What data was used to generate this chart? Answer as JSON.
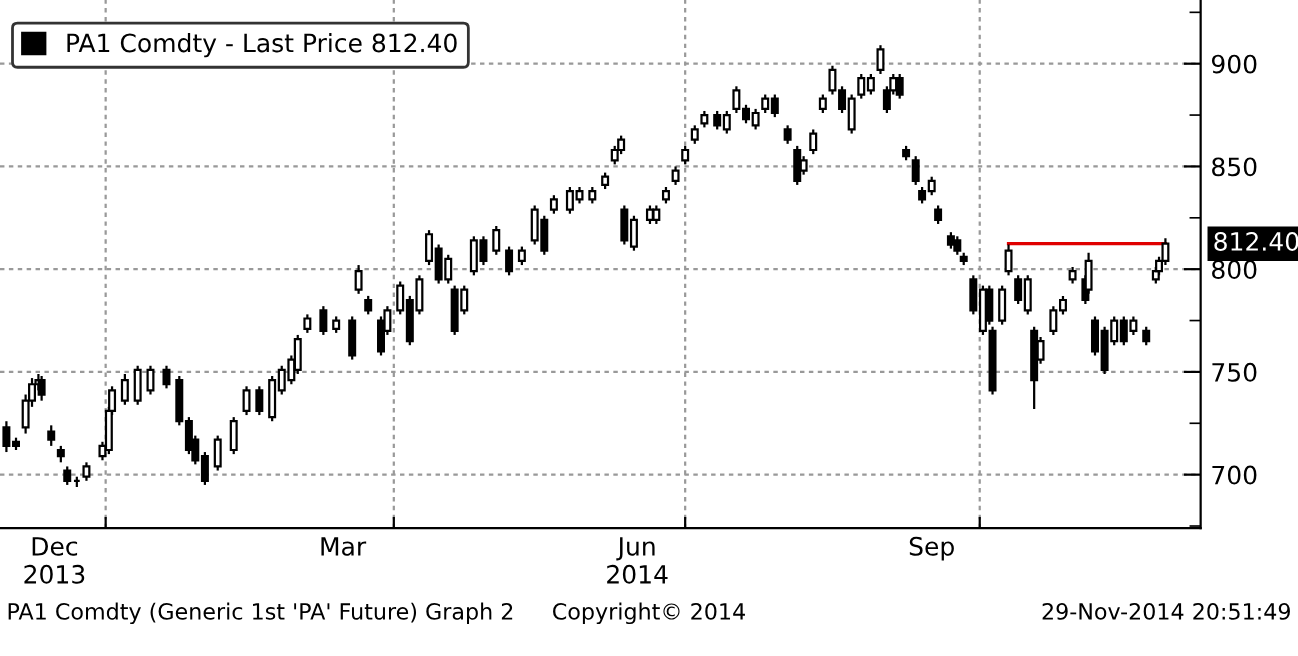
{
  "chart_data": {
    "type": "candlestick",
    "series": [
      {
        "name": "PA1 Comdty - Last Price 812.40",
        "color": "#000000",
        "x": [
          "2013-12-01",
          "2013-12-04",
          "2013-12-07",
          "2013-12-09",
          "2013-12-11",
          "2013-12-12",
          "2013-12-15",
          "2013-12-18",
          "2013-12-20",
          "2013-12-23",
          "2013-12-26",
          "2013-12-31",
          "2014-01-02",
          "2014-01-03",
          "2014-01-07",
          "2014-01-11",
          "2014-01-15",
          "2014-01-20",
          "2014-01-24",
          "2014-01-27",
          "2014-01-29",
          "2014-02-01",
          "2014-02-05",
          "2014-02-10",
          "2014-02-14",
          "2014-02-18",
          "2014-02-22",
          "2014-02-25",
          "2014-02-28",
          "2014-03-02",
          "2014-03-05",
          "2014-03-10",
          "2014-03-14",
          "2014-03-19",
          "2014-03-21",
          "2014-03-24",
          "2014-03-28",
          "2014-03-30",
          "2014-04-03",
          "2014-04-06",
          "2014-04-09",
          "2014-04-12",
          "2014-04-15",
          "2014-04-18",
          "2014-04-20",
          "2014-04-23",
          "2014-04-26",
          "2014-04-29",
          "2014-05-03",
          "2014-05-07",
          "2014-05-11",
          "2014-05-15",
          "2014-05-18",
          "2014-05-21",
          "2014-05-26",
          "2014-05-29",
          "2014-06-02",
          "2014-06-06",
          "2014-06-09",
          "2014-06-11",
          "2014-06-12",
          "2014-06-15",
          "2014-06-20",
          "2014-06-22",
          "2014-06-25",
          "2014-06-28",
          "2014-07-01",
          "2014-07-04",
          "2014-07-07",
          "2014-07-11",
          "2014-07-14",
          "2014-07-17",
          "2014-07-20",
          "2014-07-23",
          "2014-07-26",
          "2014-07-29",
          "2014-08-02",
          "2014-08-05",
          "2014-08-07",
          "2014-08-10",
          "2014-08-13",
          "2014-08-16",
          "2014-08-19",
          "2014-08-22",
          "2014-08-25",
          "2014-08-28",
          "2014-08-31",
          "2014-09-02",
          "2014-09-04",
          "2014-09-06",
          "2014-09-08",
          "2014-09-11",
          "2014-09-13",
          "2014-09-16",
          "2014-09-18",
          "2014-09-22",
          "2014-09-24",
          "2014-09-26",
          "2014-09-29",
          "2014-10-02",
          "2014-10-04",
          "2014-10-05",
          "2014-10-08",
          "2014-10-10",
          "2014-10-13",
          "2014-10-16",
          "2014-10-18",
          "2014-10-20",
          "2014-10-24",
          "2014-10-27",
          "2014-10-30",
          "2014-11-03",
          "2014-11-04",
          "2014-11-06",
          "2014-11-09",
          "2014-11-12",
          "2014-11-15",
          "2014-11-18",
          "2014-11-22",
          "2014-11-25",
          "2014-11-26",
          "2014-11-28"
        ],
        "ohlc": [
          [
            723,
            726,
            711,
            714
          ],
          [
            716,
            718,
            712,
            714
          ],
          [
            723,
            739,
            720,
            736
          ],
          [
            736,
            747,
            733,
            744
          ],
          [
            744,
            749,
            741,
            746
          ],
          [
            746,
            748,
            736,
            739
          ],
          [
            721,
            724,
            714,
            717
          ],
          [
            712,
            714,
            706,
            709
          ],
          [
            702,
            704,
            695,
            697
          ],
          [
            697,
            699,
            694,
            697
          ],
          [
            699,
            706,
            697,
            704
          ],
          [
            709,
            716,
            707,
            714
          ],
          [
            712,
            733,
            710,
            731
          ],
          [
            731,
            743,
            729,
            741
          ],
          [
            736,
            749,
            734,
            746
          ],
          [
            736,
            753,
            734,
            751
          ],
          [
            741,
            753,
            739,
            751
          ],
          [
            751,
            753,
            742,
            744
          ],
          [
            746,
            748,
            724,
            726
          ],
          [
            726,
            728,
            710,
            712
          ],
          [
            717,
            719,
            705,
            707
          ],
          [
            709,
            711,
            695,
            697
          ],
          [
            704,
            719,
            702,
            717
          ],
          [
            712,
            728,
            710,
            726
          ],
          [
            731,
            743,
            729,
            741
          ],
          [
            741,
            743,
            729,
            731
          ],
          [
            728,
            748,
            726,
            746
          ],
          [
            741,
            753,
            739,
            751
          ],
          [
            746,
            758,
            744,
            756
          ],
          [
            751,
            768,
            749,
            766
          ],
          [
            771,
            778,
            769,
            776
          ],
          [
            780,
            782,
            768,
            770
          ],
          [
            771,
            777,
            769,
            775
          ],
          [
            775,
            777,
            756,
            758
          ],
          [
            790,
            802,
            788,
            799
          ],
          [
            785,
            787,
            778,
            780
          ],
          [
            775,
            777,
            758,
            760
          ],
          [
            770,
            782,
            768,
            780
          ],
          [
            780,
            794,
            778,
            792
          ],
          [
            785,
            787,
            763,
            765
          ],
          [
            780,
            797,
            778,
            795
          ],
          [
            804,
            819,
            802,
            817
          ],
          [
            810,
            812,
            793,
            795
          ],
          [
            795,
            807,
            793,
            805
          ],
          [
            790,
            792,
            768,
            770
          ],
          [
            780,
            792,
            778,
            790
          ],
          [
            799,
            816,
            797,
            814
          ],
          [
            814,
            816,
            802,
            804
          ],
          [
            809,
            821,
            807,
            819
          ],
          [
            809,
            811,
            797,
            799
          ],
          [
            804,
            811,
            802,
            809
          ],
          [
            814,
            831,
            812,
            829
          ],
          [
            824,
            826,
            807,
            809
          ],
          [
            829,
            836,
            827,
            834
          ],
          [
            829,
            840,
            827,
            838
          ],
          [
            834,
            840,
            832,
            838
          ],
          [
            834,
            840,
            832,
            838
          ],
          [
            841,
            847,
            839,
            845
          ],
          [
            853,
            860,
            851,
            858
          ],
          [
            858,
            865,
            856,
            863
          ],
          [
            829,
            831,
            812,
            814
          ],
          [
            811,
            826,
            809,
            824
          ],
          [
            824,
            831,
            822,
            829
          ],
          [
            824,
            831,
            822,
            829
          ],
          [
            834,
            840,
            832,
            838
          ],
          [
            843,
            850,
            841,
            848
          ],
          [
            853,
            860,
            851,
            858
          ],
          [
            863,
            870,
            861,
            868
          ],
          [
            871,
            877,
            869,
            875
          ],
          [
            875,
            877,
            868,
            870
          ],
          [
            868,
            877,
            866,
            875
          ],
          [
            878,
            889,
            876,
            887
          ],
          [
            878,
            880,
            871,
            873
          ],
          [
            870,
            878,
            868,
            876
          ],
          [
            878,
            885,
            876,
            883
          ],
          [
            883,
            885,
            874,
            876
          ],
          [
            868,
            870,
            861,
            863
          ],
          [
            858,
            860,
            841,
            843
          ],
          [
            848,
            855,
            846,
            853
          ],
          [
            858,
            868,
            856,
            866
          ],
          [
            878,
            885,
            876,
            883
          ],
          [
            887,
            899,
            885,
            897
          ],
          [
            887,
            889,
            876,
            878
          ],
          [
            868,
            885,
            866,
            883
          ],
          [
            885,
            895,
            883,
            893
          ],
          [
            887,
            895,
            885,
            893
          ],
          [
            897,
            909,
            895,
            907
          ],
          [
            887,
            889,
            876,
            878
          ],
          [
            887,
            895,
            885,
            893
          ],
          [
            893,
            895,
            883,
            885
          ],
          [
            858,
            860,
            853,
            855
          ],
          [
            853,
            855,
            841,
            843
          ],
          [
            838,
            840,
            832,
            834
          ],
          [
            838,
            845,
            836,
            843
          ],
          [
            829,
            831,
            822,
            824
          ],
          [
            816,
            818,
            810,
            812
          ],
          [
            814,
            816,
            807,
            809
          ],
          [
            806,
            808,
            802,
            804
          ],
          [
            795,
            797,
            778,
            780
          ],
          [
            770,
            792,
            768,
            790
          ],
          [
            790,
            792,
            773,
            775
          ],
          [
            770,
            772,
            739,
            741
          ],
          [
            775,
            792,
            773,
            790
          ],
          [
            799,
            812,
            797,
            809
          ],
          [
            795,
            797,
            783,
            785
          ],
          [
            780,
            797,
            778,
            795
          ],
          [
            770,
            772,
            732,
            746
          ],
          [
            756,
            767,
            754,
            765
          ],
          [
            770,
            782,
            768,
            780
          ],
          [
            780,
            787,
            778,
            785
          ],
          [
            795,
            801,
            793,
            799
          ],
          [
            795,
            797,
            783,
            785
          ],
          [
            790,
            808,
            788,
            804
          ],
          [
            775,
            777,
            758,
            760
          ],
          [
            770,
            772,
            749,
            751
          ],
          [
            765,
            777,
            763,
            775
          ],
          [
            775,
            777,
            763,
            765
          ],
          [
            770,
            777,
            768,
            775
          ],
          [
            770,
            772,
            763,
            765
          ],
          [
            795,
            801,
            793,
            799
          ],
          [
            799,
            806,
            797,
            804
          ],
          [
            804,
            815,
            802,
            812.4
          ]
        ]
      },
      {
        "type": "line",
        "color": "#e00000",
        "x": [
          "2014-10-10",
          "2014-11-28"
        ],
        "values": [
          812.4,
          812.4
        ]
      }
    ],
    "xlim": [
      "2013-11-29",
      "2014-12-09"
    ],
    "xticks": [
      {
        "value": "2013-12-16",
        "label": "Dec\n2013"
      },
      {
        "value": "2014-01-01",
        "label": null
      },
      {
        "value": "2014-03-16",
        "label": "Mar"
      },
      {
        "value": "2014-04-01",
        "label": null
      },
      {
        "value": "2014-06-16",
        "label": "Jun\n2014"
      },
      {
        "value": "2014-07-01",
        "label": null
      },
      {
        "value": "2014-09-16",
        "label": "Sep"
      },
      {
        "value": "2014-10-01",
        "label": null
      }
    ],
    "ylim": [
      674,
      931
    ],
    "yticks": [
      {
        "value": 675,
        "label": null
      },
      700,
      {
        "value": 725,
        "label": null
      },
      750,
      {
        "value": 775,
        "label": null
      },
      800,
      {
        "value": 825,
        "label": null
      },
      850,
      {
        "value": 875,
        "label": null
      },
      900,
      {
        "value": 925,
        "label": null
      }
    ],
    "grid": true,
    "legend": "top left",
    "annotations": [
      "PA1 Comdty (Generic 1st 'PA' Future) Graph 2",
      "Copyright© 2014",
      "29-Nov-2014 20:51:49",
      {
        "text": "812.40",
        "x": "2014-11-28",
        "y": 812.4
      }
    ]
  }
}
